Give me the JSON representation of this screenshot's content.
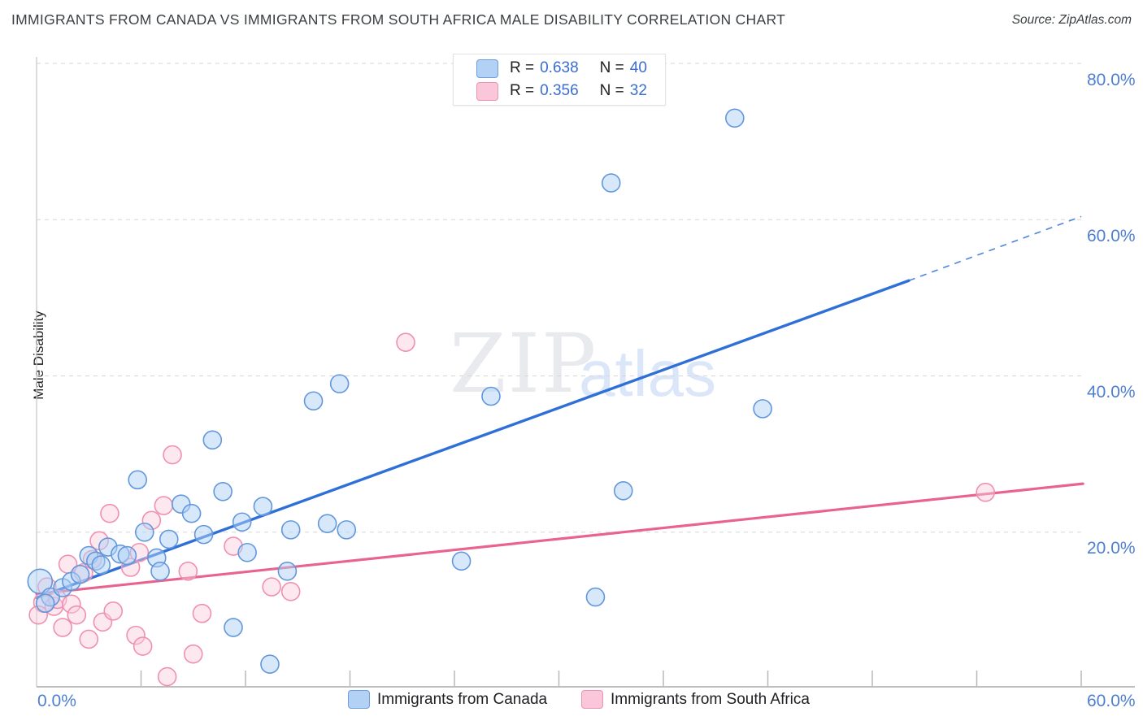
{
  "header": {
    "title": "IMMIGRANTS FROM CANADA VS IMMIGRANTS FROM SOUTH AFRICA MALE DISABILITY CORRELATION CHART",
    "source": "Source: ZipAtlas.com"
  },
  "watermark": {
    "zip": "ZIP",
    "atlas": "atlas"
  },
  "stats_legend": {
    "rows": [
      {
        "series": "canada",
        "r_label": "R =",
        "r_value": "0.638",
        "n_label": "N =",
        "n_value": "40"
      },
      {
        "series": "south_africa",
        "r_label": "R =",
        "r_value": "0.356",
        "n_label": "N =",
        "n_value": "32"
      }
    ]
  },
  "axes": {
    "y_label": "Male Disability",
    "y_tick_labels": [
      "80.0%",
      "60.0%",
      "40.0%",
      "20.0%"
    ],
    "y_tick_values": [
      80,
      60,
      40,
      20
    ],
    "x_tick_left": "0.0%",
    "x_tick_right": "60.0%"
  },
  "bottom_legend": [
    {
      "label": "Immigrants from Canada",
      "series": "canada"
    },
    {
      "label": "Immigrants from South Africa",
      "series": "south_africa"
    }
  ],
  "colors": {
    "canada_stroke": "#6397dc",
    "canada_fill": "rgba(176,209,245,0.5)",
    "south_africa_stroke": "#f090b0",
    "south_africa_fill": "rgba(250,205,222,0.45)",
    "canada_trend": "#2e6fd8",
    "south_africa_trend": "#e8638f",
    "grid": "#d6d6d6",
    "axis": "#a8a8a8",
    "tick": "#b8b8b8",
    "tick_label_blue": "#4e7fd0"
  },
  "chart_data": {
    "type": "scatter",
    "title": "Immigrants from Canada vs Immigrants from South Africa Male Disability",
    "xlabel": "",
    "ylabel": "Male Disability",
    "x_range_pct": [
      0,
      60
    ],
    "y_range_pct": [
      0,
      81.3
    ],
    "grid": "horizontal-dashed",
    "legend_position": "bottom",
    "series": [
      {
        "name": "Immigrants from Canada",
        "R": 0.638,
        "N": 40,
        "points": [
          [
            0.2,
            13.7
          ],
          [
            0.8,
            11.7
          ],
          [
            0.5,
            10.9
          ],
          [
            1.5,
            12.9
          ],
          [
            2.0,
            13.7
          ],
          [
            2.5,
            14.6
          ],
          [
            3.0,
            17.0
          ],
          [
            3.4,
            16.3
          ],
          [
            3.7,
            15.8
          ],
          [
            4.1,
            18.1
          ],
          [
            4.8,
            17.2
          ],
          [
            5.2,
            17.0
          ],
          [
            6.9,
            16.7
          ],
          [
            7.1,
            15.0
          ],
          [
            5.8,
            26.7
          ],
          [
            6.2,
            20.0
          ],
          [
            7.6,
            19.1
          ],
          [
            8.3,
            23.6
          ],
          [
            8.9,
            22.4
          ],
          [
            9.6,
            19.7
          ],
          [
            10.1,
            31.8
          ],
          [
            10.7,
            25.2
          ],
          [
            11.3,
            7.8
          ],
          [
            11.8,
            21.3
          ],
          [
            12.1,
            17.4
          ],
          [
            13.0,
            23.3
          ],
          [
            13.4,
            3.1
          ],
          [
            14.4,
            15.0
          ],
          [
            14.6,
            20.3
          ],
          [
            15.9,
            36.8
          ],
          [
            16.7,
            21.1
          ],
          [
            17.4,
            39.0
          ],
          [
            17.8,
            20.3
          ],
          [
            24.4,
            16.3
          ],
          [
            26.1,
            37.4
          ],
          [
            32.1,
            11.7
          ],
          [
            33.7,
            25.3
          ],
          [
            33.0,
            64.7
          ],
          [
            40.1,
            73.0
          ],
          [
            41.7,
            35.8
          ]
        ],
        "big_point_index": 0,
        "trend_solid": [
          [
            0,
            11.6
          ],
          [
            50.1,
            52.2
          ]
        ],
        "trend_dashed": [
          [
            50.1,
            52.2
          ],
          [
            60.0,
            60.4
          ]
        ]
      },
      {
        "name": "Immigrants from South Africa",
        "R": 0.356,
        "N": 32,
        "points": [
          [
            0.4,
            11.0
          ],
          [
            1.0,
            10.5
          ],
          [
            0.6,
            13.0
          ],
          [
            1.2,
            11.4
          ],
          [
            0.1,
            9.4
          ],
          [
            1.8,
            15.9
          ],
          [
            2.7,
            14.8
          ],
          [
            3.2,
            16.5
          ],
          [
            5.4,
            15.5
          ],
          [
            8.7,
            15.0
          ],
          [
            2.0,
            10.8
          ],
          [
            2.3,
            9.4
          ],
          [
            1.5,
            7.8
          ],
          [
            3.0,
            6.3
          ],
          [
            3.8,
            8.5
          ],
          [
            4.4,
            9.9
          ],
          [
            5.7,
            6.8
          ],
          [
            6.1,
            5.4
          ],
          [
            7.5,
            1.5
          ],
          [
            9.5,
            9.6
          ],
          [
            9.0,
            4.4
          ],
          [
            7.8,
            29.9
          ],
          [
            4.2,
            22.4
          ],
          [
            7.3,
            23.4
          ],
          [
            6.6,
            21.5
          ],
          [
            3.6,
            18.9
          ],
          [
            5.9,
            17.4
          ],
          [
            11.3,
            18.2
          ],
          [
            13.5,
            13.0
          ],
          [
            14.6,
            12.4
          ],
          [
            21.2,
            44.3
          ],
          [
            54.5,
            25.1
          ]
        ],
        "big_point_index": 0,
        "trend_solid": [
          [
            0,
            12.1
          ],
          [
            60.1,
            26.2
          ]
        ],
        "trend_dashed": null
      }
    ]
  }
}
